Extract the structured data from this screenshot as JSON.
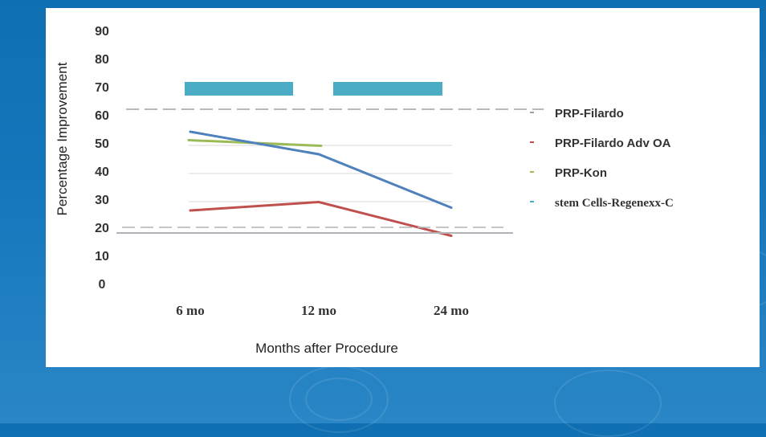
{
  "chart_data": {
    "type": "line",
    "ylabel": "Percentage Improvement",
    "xlabel": "Months after Procedure",
    "categories": [
      "6 mo",
      "12 mo",
      "24 mo"
    ],
    "yticks": [
      "0",
      "10",
      "20",
      "30",
      "40",
      "50",
      "60",
      "70",
      "80",
      "90"
    ],
    "ylim": [
      0,
      90
    ],
    "grid": true,
    "legend_position": "right",
    "series": [
      {
        "name": "PRP-Filardo",
        "color": "#9aa0a6",
        "values": [
          62,
          62,
          62
        ],
        "style": "dashed"
      },
      {
        "name": "PRP-Filardo Adv OA",
        "color": "#c0504d",
        "values": [
          26,
          29,
          17
        ]
      },
      {
        "name": "PRP-Kon",
        "color": "#9bbb59",
        "values": [
          51,
          49,
          null
        ]
      },
      {
        "name": "stem Cells-Regenexx-C",
        "color": "#4bacc6",
        "bars": [
          [
            6,
            12
          ],
          [
            12,
            24
          ]
        ],
        "level": 70
      },
      {
        "name": "",
        "color": "#4f81bd",
        "values": [
          54,
          46,
          27
        ]
      },
      {
        "name": "",
        "color": "#b0b4b8",
        "values": [
          18,
          18,
          18
        ]
      },
      {
        "name": "",
        "color": "#b0b4b8",
        "values": [
          20,
          20,
          20
        ],
        "style": "dashed"
      }
    ]
  }
}
